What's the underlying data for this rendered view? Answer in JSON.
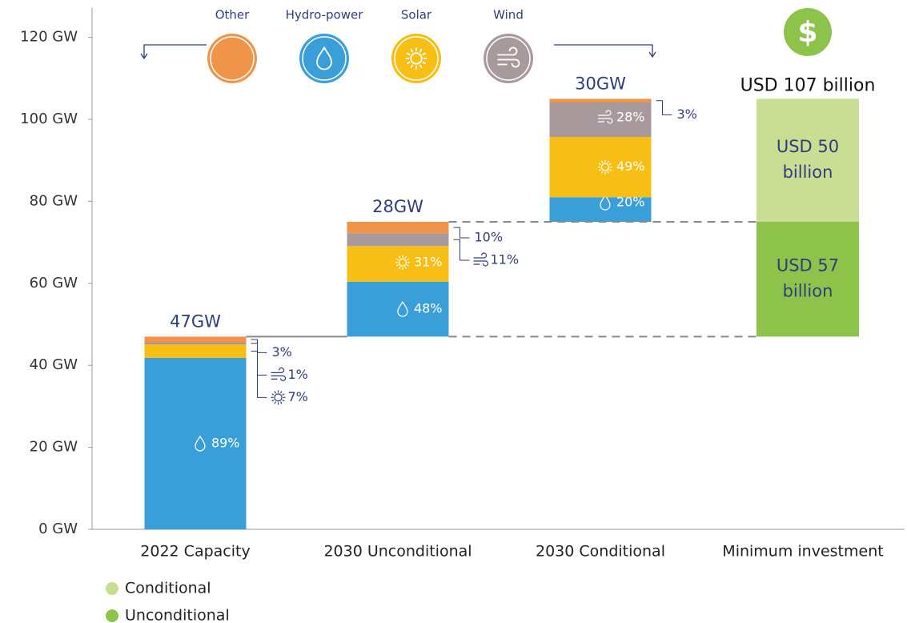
{
  "chart_data": {
    "type": "bar",
    "stacked": true,
    "waterfall": true,
    "categories": [
      "2022 Capacity",
      "2030 Unconditional",
      "2030 Conditional",
      "Minimum investment"
    ],
    "series": [
      {
        "name": "Other",
        "color": "#f0944a",
        "values": [
          1.4,
          2.8,
          0.9,
          null
        ],
        "share_labels": [
          "3%",
          "10%",
          "3%",
          null
        ]
      },
      {
        "name": "Hydro-power",
        "color": "#3a9fd8",
        "values": [
          41.8,
          13.4,
          6,
          null
        ],
        "share_labels": [
          "89%",
          "48%",
          "20%",
          null
        ]
      },
      {
        "name": "Solar",
        "color": "#f7be16",
        "values": [
          3.3,
          8.7,
          14.7,
          null
        ],
        "share_labels": [
          "7%",
          "31%",
          "49%",
          null
        ]
      },
      {
        "name": "Wind",
        "color": "#a89a9c",
        "values": [
          0.5,
          3.1,
          8.4,
          null
        ],
        "share_labels": [
          "1%",
          "11%",
          "28%",
          null
        ]
      }
    ],
    "bar_totals": [
      47,
      28,
      30,
      null
    ],
    "bar_total_labels": [
      "47GW",
      "28GW",
      "30GW",
      null
    ],
    "ylim": [
      0,
      125
    ],
    "yticks": [
      {
        "value": 0,
        "label": "0 GW"
      },
      {
        "value": 20,
        "label": "20 GW"
      },
      {
        "value": 40,
        "label": "40 GW"
      },
      {
        "value": 60,
        "label": "60 GW"
      },
      {
        "value": 80,
        "label": "80 GW"
      },
      {
        "value": 100,
        "label": "100 GW"
      },
      {
        "value": 120,
        "label": "120 GW"
      }
    ],
    "grid": false,
    "investment": {
      "icon": "$",
      "total_label": "USD 107 billion",
      "segments": [
        {
          "name": "Unconditional",
          "color": "#8dc34b",
          "value": 57,
          "label_lines": [
            "USD 57",
            "billion"
          ]
        },
        {
          "name": "Conditional",
          "color": "#c9de92",
          "value": 50,
          "label_lines": [
            "USD 50",
            "billion"
          ]
        }
      ]
    }
  }
}
